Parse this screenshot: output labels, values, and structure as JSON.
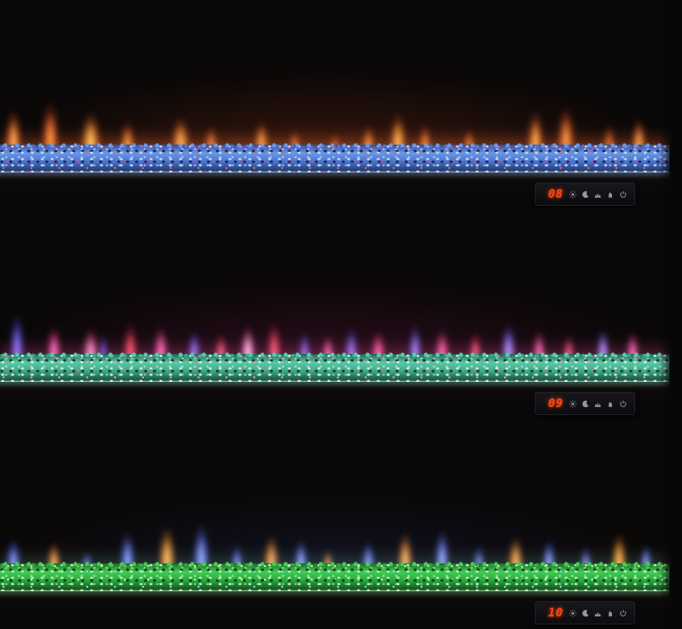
{
  "scene": {
    "description": "Three wall-mounted linear electric fireplaces stacked vertically, each showing a different flame and crystal ember-bed color theme, with an LED touch control panel on the lower-right of each unit"
  },
  "panel": {
    "led_color": "#ff4710",
    "icon_color": "#a9b1ba",
    "icons": [
      {
        "name": "sun-icon"
      },
      {
        "name": "moon-icon"
      },
      {
        "name": "flames-icon"
      },
      {
        "name": "hand-icon"
      },
      {
        "name": "power-icon"
      }
    ]
  },
  "fireplaces": [
    {
      "id": "top",
      "display_value": "08",
      "flame_theme": "orange and red flames",
      "bed_theme": "blue crystals with magenta embers",
      "ambient": "rgba(150,55,22,0.30)",
      "hotline": "rgba(236,96,34,0.50)",
      "bed": {
        "top": "#33489a",
        "mid": "#6a97e6",
        "mid2": "#4a74cc",
        "hi": "#bcd6fa",
        "lo": "#1b2a58",
        "accent": "#d5488e",
        "accent2": "#e86a5a",
        "glow": "rgba(210,228,255,0.95)",
        "glow_soft": "rgba(160,200,255,0.30)"
      },
      "flames": [
        [
          2,
          20,
          62,
          "#ffb24a",
          "#d84e1a"
        ],
        [
          7.5,
          22,
          74,
          "#ff9a35",
          "#c23815"
        ],
        [
          13.5,
          24,
          58,
          "#ffc75a",
          "#e0641c"
        ],
        [
          19,
          18,
          46,
          "#ff9e3c",
          "#b83818"
        ],
        [
          27,
          22,
          52,
          "#ffae44",
          "#d8581c"
        ],
        [
          31.5,
          16,
          40,
          "#f2843a",
          "#a23418"
        ],
        [
          39,
          18,
          46,
          "#ffa03e",
          "#c84c18"
        ],
        [
          44,
          14,
          34,
          "#e87430",
          "#9a2e14"
        ],
        [
          50,
          12,
          28,
          "#d86028",
          "#8c2812"
        ],
        [
          55,
          16,
          40,
          "#ff9838",
          "#b84016"
        ],
        [
          59.5,
          20,
          56,
          "#ffb848",
          "#d85e1e"
        ],
        [
          63.5,
          16,
          42,
          "#f08434",
          "#aa3618"
        ],
        [
          70,
          14,
          36,
          "#e87e30",
          "#9e3014"
        ],
        [
          80,
          20,
          60,
          "#ffae44",
          "#cc501a"
        ],
        [
          84.5,
          22,
          66,
          "#ff9e3a",
          "#c23c18"
        ],
        [
          91,
          16,
          42,
          "#e0642a",
          "#8e2a12"
        ],
        [
          95.5,
          18,
          50,
          "#ffa840",
          "#c44818"
        ]
      ]
    },
    {
      "id": "middle",
      "display_value": "09",
      "flame_theme": "magenta, red and blue-violet flames",
      "bed_theme": "seafoam teal crystals with pink embers",
      "ambient": "rgba(130,30,85,0.26)",
      "hotline": "rgba(220,60,140,0.42)",
      "bed": {
        "top": "#1e6450",
        "mid": "#5cc8a6",
        "mid2": "#3fa987",
        "hi": "#c2f4e2",
        "lo": "#11402f",
        "accent": "#e85aa8",
        "accent2": "#ff8fc8",
        "glow": "rgba(215,255,240,0.95)",
        "glow_soft": "rgba(150,240,210,0.30)"
      },
      "flames": [
        [
          2.5,
          18,
          70,
          "#8a7cf0",
          "#4a3cd8"
        ],
        [
          8,
          18,
          52,
          "#ff7ac0",
          "#d82a78"
        ],
        [
          13.5,
          20,
          48,
          "#ffa0d0",
          "#e04890"
        ],
        [
          15.5,
          10,
          42,
          "#7a6cf0",
          "#3a2cc8"
        ],
        [
          19.5,
          18,
          56,
          "#ff5a6a",
          "#c82038"
        ],
        [
          24,
          18,
          52,
          "#ff7ab8",
          "#d83080"
        ],
        [
          29,
          16,
          46,
          "#8a78f0",
          "#5040d0"
        ],
        [
          33,
          16,
          42,
          "#ff6078",
          "#c02848"
        ],
        [
          37,
          18,
          52,
          "#ffd0e8",
          "#f060a8"
        ],
        [
          41,
          18,
          58,
          "#ff5a66",
          "#c42440"
        ],
        [
          45.5,
          14,
          44,
          "#8a7cf0",
          "#4838c8"
        ],
        [
          49,
          14,
          40,
          "#ff7ab0",
          "#d03078"
        ],
        [
          52.5,
          16,
          50,
          "#8a80f4",
          "#5244d4"
        ],
        [
          56.5,
          18,
          46,
          "#ff66a0",
          "#cc2868"
        ],
        [
          62,
          16,
          54,
          "#9a8cf4",
          "#5a48d8"
        ],
        [
          66,
          18,
          48,
          "#ff70aa",
          "#d42c70"
        ],
        [
          71,
          16,
          44,
          "#ff5a70",
          "#bc2440"
        ],
        [
          76,
          18,
          56,
          "#aa94f6",
          "#6652dc"
        ],
        [
          80.5,
          16,
          46,
          "#ff74b4",
          "#d8347c"
        ],
        [
          85,
          14,
          40,
          "#ff6080",
          "#c22850"
        ],
        [
          90,
          16,
          48,
          "#b09af6",
          "#7058e0"
        ],
        [
          94.5,
          16,
          44,
          "#ff7ab8",
          "#d83488"
        ]
      ]
    },
    {
      "id": "bottom",
      "display_value": "10",
      "flame_theme": "blue and orange flames",
      "bed_theme": "bright green crystals",
      "ambient": "rgba(35,55,125,0.22)",
      "hotline": "rgba(90,140,110,0.40)",
      "bed": {
        "top": "#1a6a22",
        "mid": "#43cb57",
        "mid2": "#2ba83d",
        "hi": "#aef4b2",
        "lo": "#0e3f14",
        "accent": "#d8f890",
        "accent2": "#7ae2ff",
        "glow": "rgba(214,255,216,0.95)",
        "glow_soft": "rgba(140,240,150,0.30)"
      },
      "flames": [
        [
          2,
          18,
          48,
          "#8aa0f4",
          "#3c50d8"
        ],
        [
          8,
          16,
          42,
          "#ffb050",
          "#e07a20"
        ],
        [
          13,
          12,
          30,
          "#7a90ee",
          "#3444c0"
        ],
        [
          19,
          18,
          58,
          "#90a8f6",
          "#4458dc"
        ],
        [
          25,
          20,
          64,
          "#ffb856",
          "#e8841f"
        ],
        [
          30,
          20,
          68,
          "#94acf8",
          "#4a5ee0"
        ],
        [
          35.5,
          14,
          40,
          "#8098f0",
          "#3848c8"
        ],
        [
          40.5,
          18,
          52,
          "#ffae4e",
          "#dd7c1e"
        ],
        [
          45,
          16,
          46,
          "#9ab0f8",
          "#5064e4"
        ],
        [
          49,
          12,
          32,
          "#f0a040",
          "#c06818"
        ],
        [
          55,
          16,
          44,
          "#8ca4f6",
          "#4054d8"
        ],
        [
          60.5,
          18,
          56,
          "#ffb452",
          "#e27e20"
        ],
        [
          66,
          18,
          60,
          "#98b0f8",
          "#4c60e0"
        ],
        [
          71.5,
          14,
          38,
          "#8098f0",
          "#3a4ac8"
        ],
        [
          77,
          18,
          50,
          "#ffb050",
          "#df7c1f"
        ],
        [
          82,
          16,
          46,
          "#94acf8",
          "#4858dc"
        ],
        [
          87.5,
          14,
          36,
          "#8aa2f4",
          "#4050cc"
        ],
        [
          92.5,
          18,
          54,
          "#ffb654",
          "#e5821f"
        ],
        [
          96.5,
          14,
          40,
          "#90a8f6",
          "#4456d8"
        ]
      ]
    }
  ]
}
